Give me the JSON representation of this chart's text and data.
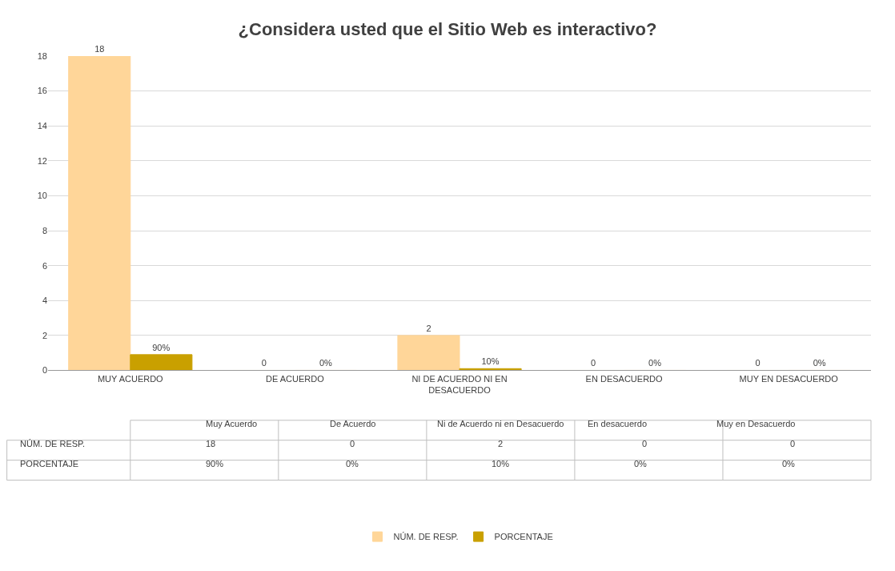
{
  "chart_data": {
    "type": "bar",
    "title": "¿Considera usted que el Sitio Web es interactivo?",
    "categories": [
      "MUY ACUERDO",
      "DE ACUERDO",
      "NI DE ACUERDO NI EN DESACUERDO",
      "EN DESACUERDO",
      "MUY EN DESACUERDO"
    ],
    "series": [
      {
        "name": "NÚM. DE RESP.",
        "color": "#ffd699",
        "values": [
          18,
          0,
          2,
          0,
          0
        ],
        "value_labels": [
          "18",
          "0",
          "2",
          "0",
          "0"
        ]
      },
      {
        "name": "PORCENTAJE",
        "color": "#c9a000",
        "values": [
          0.9,
          0,
          0.1,
          0,
          0
        ],
        "value_labels": [
          "90%",
          "0%",
          "10%",
          "0%",
          "0%"
        ]
      }
    ],
    "annotations": [
      "Muy Acuerdo",
      "De Acuerdo",
      "Ni de Acuerdo ni en Desacuerdo",
      "En desacuerdo",
      "Muy en Desacuerdo"
    ],
    "ylim": [
      0,
      18
    ],
    "yticks": [
      0,
      2,
      4,
      6,
      8,
      10,
      12,
      14,
      16,
      18
    ],
    "grid": "y",
    "legend": "bottom"
  }
}
